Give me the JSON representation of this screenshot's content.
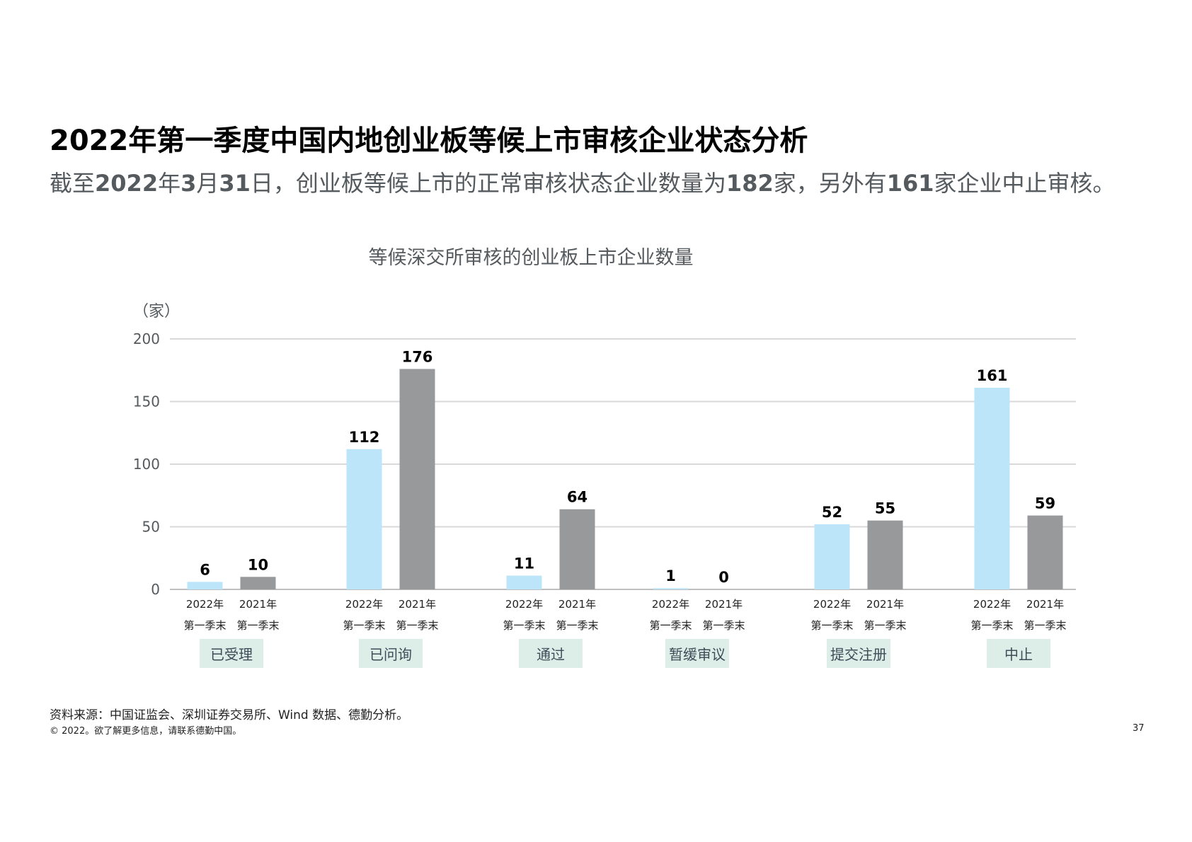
{
  "header": {
    "title": "2022年第一季度中国内地创业板等候上市审核企业状态分析",
    "subtitle_parts": [
      "截至",
      "2022",
      "年",
      "3",
      "月",
      "31",
      "日，创业板等候上市的正常审核状态企业数量为",
      "182",
      "家，另外有",
      "161",
      "家企业中止审核。"
    ]
  },
  "chart_data": {
    "type": "bar",
    "title": "等候深交所审核的创业板上市企业数量",
    "unit_label": "（家）",
    "ylim": [
      0,
      200
    ],
    "yticks": [
      0,
      50,
      100,
      150,
      200
    ],
    "grid": true,
    "groups": [
      {
        "label": "已受理",
        "bars": [
          {
            "x_label_1": "2022年",
            "x_label_2": "第一季末",
            "value": 6
          },
          {
            "x_label_1": "2021年",
            "x_label_2": "第一季末",
            "value": 10
          }
        ]
      },
      {
        "label": "已问询",
        "bars": [
          {
            "x_label_1": "2022年",
            "x_label_2": "第一季末",
            "value": 112
          },
          {
            "x_label_1": "2021年",
            "x_label_2": "第一季末",
            "value": 176
          }
        ]
      },
      {
        "label": "通过",
        "bars": [
          {
            "x_label_1": "2022年",
            "x_label_2": "第一季末",
            "value": 11
          },
          {
            "x_label_1": "2021年",
            "x_label_2": "第一季末",
            "value": 64
          }
        ]
      },
      {
        "label": "暂缓审议",
        "bars": [
          {
            "x_label_1": "2022年",
            "x_label_2": "第一季末",
            "value": 1
          },
          {
            "x_label_1": "2021年",
            "x_label_2": "第一季末",
            "value": 0
          }
        ]
      },
      {
        "label": "提交注册",
        "bars": [
          {
            "x_label_1": "2022年",
            "x_label_2": "第一季末",
            "value": 52
          },
          {
            "x_label_1": "2021年",
            "x_label_2": "第一季末",
            "value": 55
          }
        ]
      },
      {
        "label": "中止",
        "bars": [
          {
            "x_label_1": "2022年",
            "x_label_2": "第一季末",
            "value": 161
          },
          {
            "x_label_1": "2021年",
            "x_label_2": "第一季末",
            "value": 59
          }
        ]
      }
    ],
    "colors": {
      "series_2022": "#bde5fa",
      "series_2021": "#97999b",
      "category_box": "#ddeee9",
      "category_text": "#3d4c56",
      "grid": "#d9d9d9",
      "axis": "#bfbfbf",
      "tick_text": "#555a5e"
    }
  },
  "footer": {
    "source": "资料来源：中国证监会、深圳证券交易所、Wind 数据、德勤分析。",
    "copyright": "© 2022。欲了解更多信息，请联系德勤中国。",
    "page_number": "37"
  }
}
